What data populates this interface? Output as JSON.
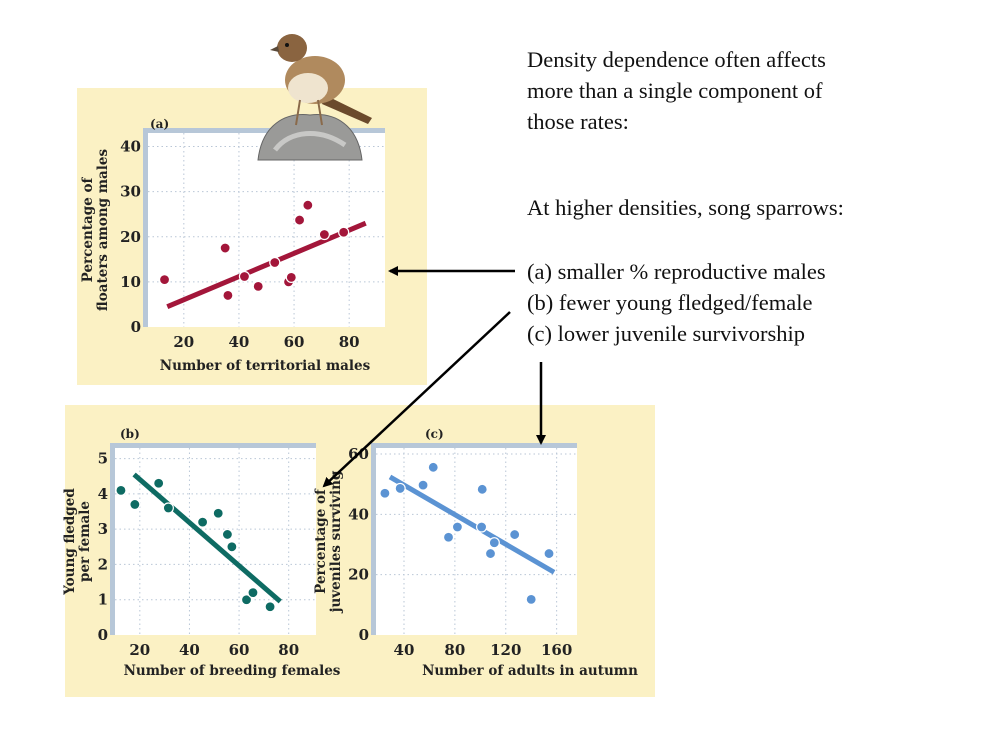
{
  "slide": {
    "intro_lines": [
      "Density dependence often affects",
      "more than a single component of",
      "those rates:"
    ],
    "lead": "At higher densities, song sparrows:",
    "items": [
      "(a) smaller % reproductive males",
      "(b) fewer young fledged/female",
      "(c) lower juvenile survivorship"
    ]
  },
  "colors": {
    "panel_bg": "#fbf1c4",
    "series_a": "#a3163a",
    "series_b": "#0e6b63",
    "series_c": "#5b93d3"
  },
  "chart_data": [
    {
      "type": "scatter",
      "panel": "(a)",
      "xlabel": "Number of territorial males",
      "ylabel": [
        "Percentage of",
        "floaters among males"
      ],
      "xlim": [
        7,
        93
      ],
      "ylim": [
        0,
        43
      ],
      "xticks": [
        "20",
        "40",
        "60",
        "80"
      ],
      "yticks": [
        "0",
        "10",
        "20",
        "30",
        "40"
      ],
      "grid": true,
      "points": [
        [
          13,
          10.5
        ],
        [
          35,
          17.5
        ],
        [
          36,
          7
        ],
        [
          42,
          11.2
        ],
        [
          47,
          9
        ],
        [
          53,
          14.3
        ],
        [
          58,
          10
        ],
        [
          59,
          11
        ],
        [
          62,
          23.7
        ],
        [
          65,
          27
        ],
        [
          71,
          20.5
        ],
        [
          78,
          21
        ]
      ],
      "trend": [
        [
          14,
          4.5
        ],
        [
          86,
          23
        ]
      ]
    },
    {
      "type": "scatter",
      "panel": "(b)",
      "xlabel": "Number of breeding females",
      "ylabel": [
        "Young fledged",
        "per female"
      ],
      "xlim": [
        10,
        91
      ],
      "ylim": [
        0,
        5.3
      ],
      "xticks": [
        "20",
        "40",
        "60",
        "80"
      ],
      "yticks": [
        "0",
        "1",
        "2",
        "3",
        "4",
        "5"
      ],
      "grid": true,
      "points": [
        [
          12.4,
          4.1
        ],
        [
          18,
          3.7
        ],
        [
          27.6,
          4.3
        ],
        [
          31.5,
          3.6
        ],
        [
          45.3,
          3.2
        ],
        [
          51.6,
          3.45
        ],
        [
          55.3,
          2.85
        ],
        [
          57.1,
          2.5
        ],
        [
          63,
          1.0
        ],
        [
          65.6,
          1.2
        ],
        [
          72.5,
          0.8
        ]
      ],
      "trend": [
        [
          17.7,
          4.55
        ],
        [
          76.6,
          0.95
        ]
      ]
    },
    {
      "type": "scatter",
      "panel": "(c)",
      "xlabel": "Number of adults in autumn",
      "ylabel": [
        "Percentage of",
        "juveniles surviving"
      ],
      "xlim": [
        18,
        176
      ],
      "ylim": [
        0,
        62
      ],
      "xticks": [
        "40",
        "80",
        "120",
        "160"
      ],
      "yticks": [
        "0",
        "20",
        "40",
        "60"
      ],
      "grid": true,
      "points": [
        [
          25,
          47
        ],
        [
          37,
          48.6
        ],
        [
          55,
          49.7
        ],
        [
          63,
          55.6
        ],
        [
          75,
          32.4
        ],
        [
          82,
          35.8
        ],
        [
          101.5,
          48.3
        ],
        [
          101,
          35.8
        ],
        [
          108,
          27
        ],
        [
          111,
          30.6
        ],
        [
          127,
          33.3
        ],
        [
          140,
          11.8
        ],
        [
          154,
          27
        ]
      ],
      "trend": [
        [
          29,
          52.4
        ],
        [
          158,
          20.8
        ]
      ]
    }
  ]
}
